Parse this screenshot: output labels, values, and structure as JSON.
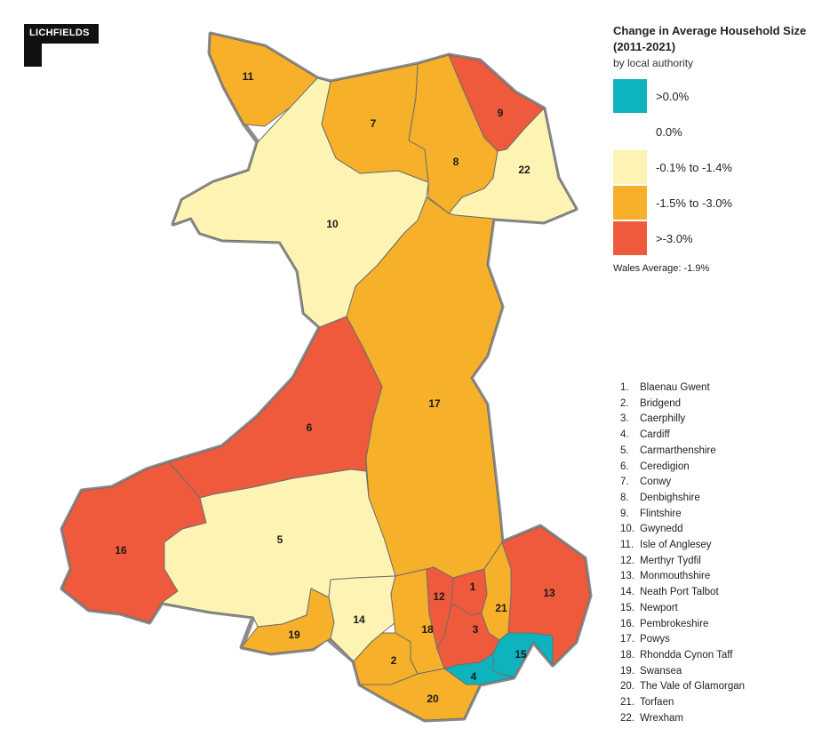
{
  "logo": {
    "text": "LICHFIELDS"
  },
  "legend": {
    "title": "Change in Average Household Size (2011-2021)",
    "subtitle": "by local authority",
    "items": [
      {
        "label": ">0.0%",
        "color": "#0db3bd"
      },
      {
        "label": "0.0%",
        "color": "#ffffff"
      },
      {
        "label": "-0.1% to -1.4%",
        "color": "#fdf4b4"
      },
      {
        "label": "-1.5% to -3.0%",
        "color": "#f7b029"
      },
      {
        "label": ">-3.0%",
        "color": "#ee5a3b"
      }
    ],
    "average": "Wales Average: -1.9%"
  },
  "regions": [
    {
      "num": "1",
      "name": "Blaenau Gwent",
      "category": 4
    },
    {
      "num": "2",
      "name": "Bridgend",
      "category": 3
    },
    {
      "num": "3",
      "name": "Caerphilly",
      "category": 4
    },
    {
      "num": "4",
      "name": "Cardiff",
      "category": 0
    },
    {
      "num": "5",
      "name": "Carmarthenshire",
      "category": 2
    },
    {
      "num": "6",
      "name": "Ceredigion",
      "category": 4
    },
    {
      "num": "7",
      "name": "Conwy",
      "category": 3
    },
    {
      "num": "8",
      "name": "Denbighshire",
      "category": 3
    },
    {
      "num": "9",
      "name": "Flintshire",
      "category": 4
    },
    {
      "num": "10",
      "name": "Gwynedd",
      "category": 2
    },
    {
      "num": "11",
      "name": "Isle of Anglesey",
      "category": 3
    },
    {
      "num": "12",
      "name": "Merthyr Tydfil",
      "category": 4
    },
    {
      "num": "13",
      "name": "Monmouthshire",
      "category": 4
    },
    {
      "num": "14",
      "name": "Neath Port Talbot",
      "category": 2
    },
    {
      "num": "15",
      "name": "Newport",
      "category": 0
    },
    {
      "num": "16",
      "name": "Pembrokeshire",
      "category": 4
    },
    {
      "num": "17",
      "name": "Powys",
      "category": 3
    },
    {
      "num": "18",
      "name": "Rhondda Cynon Taff",
      "category": 3
    },
    {
      "num": "19",
      "name": "Swansea",
      "category": 3
    },
    {
      "num": "20",
      "name": "The Vale of Glamorgan",
      "category": 3
    },
    {
      "num": "21",
      "name": "Torfaen",
      "category": 3
    },
    {
      "num": "22",
      "name": "Wrexham",
      "category": 2
    }
  ]
}
